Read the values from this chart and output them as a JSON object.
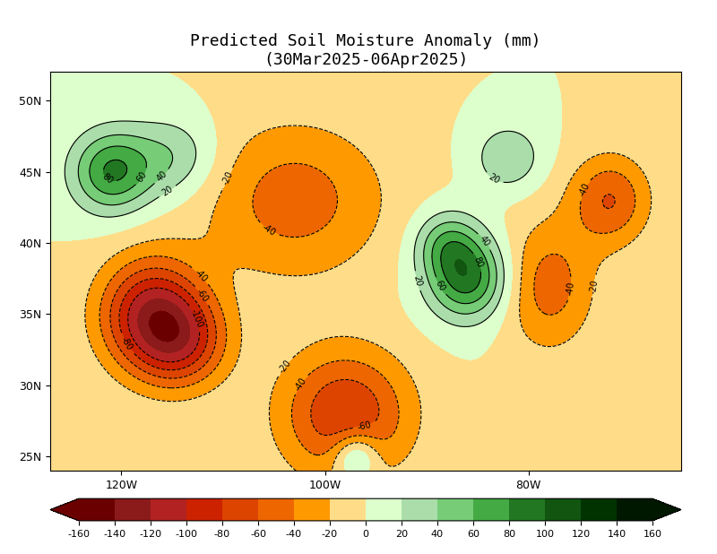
{
  "title_line1": "Predicted Soil Moisture Anomaly (mm)",
  "title_line2": "(30Mar2025-06Apr2025)",
  "lon_min": -127,
  "lon_max": -65,
  "lat_min": 24,
  "lat_max": 52,
  "xticks": [
    -120,
    -100,
    -80
  ],
  "xtick_labels": [
    "120W",
    "100W",
    "80W"
  ],
  "yticks": [
    25,
    30,
    35,
    40,
    45,
    50
  ],
  "ytick_labels": [
    "25N",
    "30N",
    "35N",
    "40N",
    "45N",
    "50N"
  ],
  "colorbar_levels": [
    -160,
    -140,
    -120,
    -100,
    -80,
    -60,
    -40,
    -20,
    20,
    40,
    60,
    80,
    100,
    120,
    140,
    160
  ],
  "colorbar_colors": [
    "#8B0000",
    "#B22222",
    "#CC2200",
    "#DD4400",
    "#EE6600",
    "#FF8800",
    "#FFAA00",
    "#FFDD88",
    "#DDFFCC",
    "#AADDAA",
    "#66BB66",
    "#339933",
    "#227722",
    "#115511",
    "#003300"
  ],
  "contour_levels": [
    -160,
    -140,
    -120,
    -100,
    -80,
    -60,
    -40,
    -20,
    20,
    40,
    60,
    80,
    100,
    120,
    140,
    160
  ],
  "label_levels": [
    -100,
    -80,
    -60,
    -40,
    -20,
    20,
    40,
    60,
    80
  ],
  "background_color": "#ffffff",
  "title_fontsize": 13
}
